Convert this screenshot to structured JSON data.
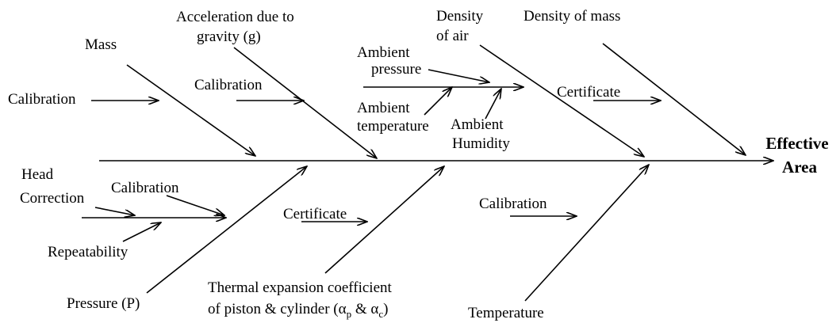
{
  "title": {
    "line1": "Effective",
    "line2": "Area"
  },
  "causes": [
    {
      "label": [
        "Mass"
      ]
    },
    {
      "label": [
        "Acceleration due to",
        "gravity (g)"
      ]
    },
    {
      "label": [
        "Density",
        "of air"
      ]
    },
    {
      "label": [
        "Density of mass"
      ]
    },
    {
      "label": [
        "Pressure (P)"
      ]
    },
    {
      "label": [
        "Thermal expansion coefficient",
        "of piston & cylinder (α",
        "p",
        " & α",
        "c",
        ")"
      ]
    },
    {
      "label": [
        "Temperature"
      ]
    }
  ],
  "sub_causes": [
    {
      "label": [
        "Calibration"
      ]
    },
    {
      "label": [
        "Calibration"
      ]
    },
    {
      "label": [
        "Ambient",
        "pressure"
      ]
    },
    {
      "label": [
        "Ambient",
        "temperature"
      ]
    },
    {
      "label": [
        "Ambient",
        "Humidity"
      ]
    },
    {
      "label": [
        "Certificate"
      ]
    },
    {
      "label": [
        "Head",
        "Correction"
      ]
    },
    {
      "label": [
        "Calibration"
      ]
    },
    {
      "label": [
        "Repeatability"
      ]
    },
    {
      "label": [
        "Certificate"
      ]
    },
    {
      "label": [
        "Calibration"
      ]
    }
  ]
}
